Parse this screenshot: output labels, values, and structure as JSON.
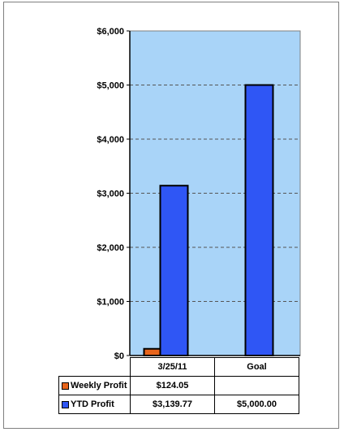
{
  "chart_data": {
    "type": "bar",
    "categories": [
      "3/25/11",
      "Goal"
    ],
    "series": [
      {
        "name": "Weekly Profit",
        "values": [
          124.05,
          null
        ],
        "labels": [
          "$124.05",
          ""
        ],
        "color": "#e8651c"
      },
      {
        "name": "YTD Profit",
        "values": [
          3139.77,
          5000.0
        ],
        "labels": [
          "$3,139.77",
          "$5,000.00"
        ],
        "color": "#2f56f5"
      }
    ],
    "title": "",
    "xlabel": "",
    "ylabel": "",
    "ylim": [
      0,
      6000
    ],
    "yticks": [
      0,
      1000,
      2000,
      3000,
      4000,
      5000,
      6000
    ],
    "ytick_labels": [
      "$0",
      "$1,000",
      "$2,000",
      "$3,000",
      "$4,000",
      "$5,000",
      "$6,000"
    ],
    "grid": true,
    "grid_style": "dashed",
    "legend_placement": "data table",
    "plot_background": "#a9d4f8"
  }
}
